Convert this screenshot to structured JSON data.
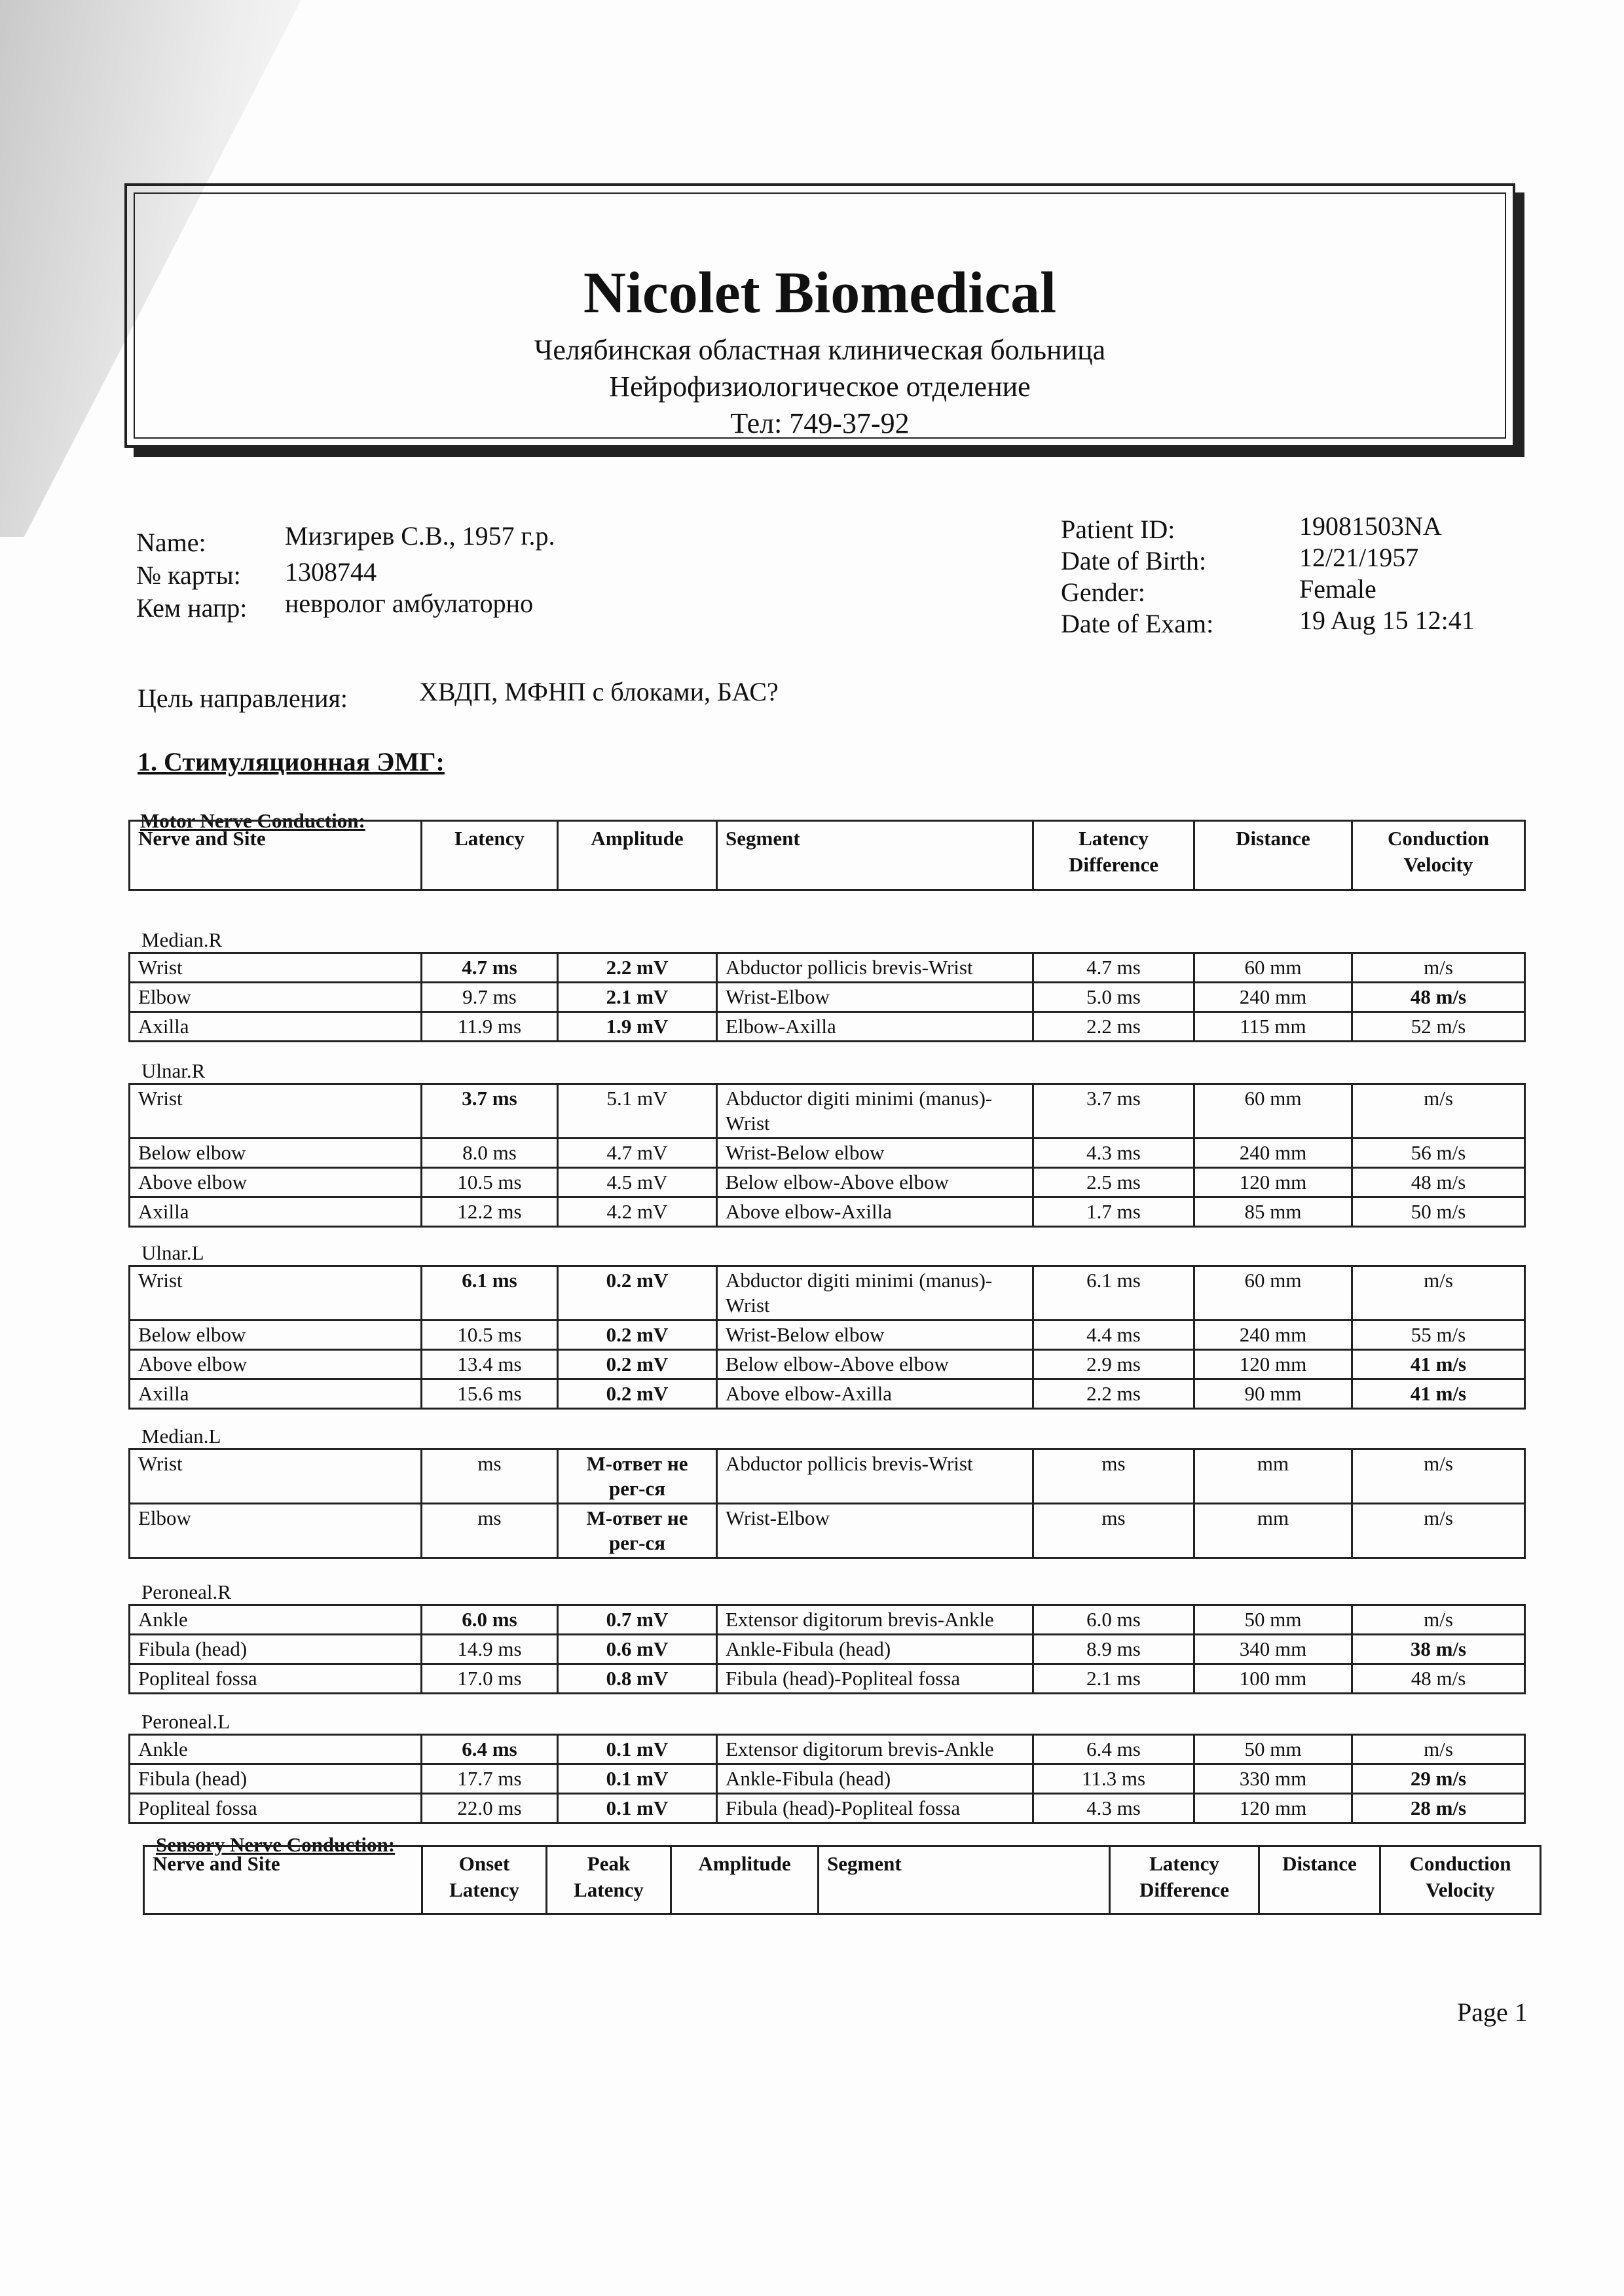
{
  "header": {
    "title": "Nicolet Biomedical",
    "line1": "Челябинская областная клиническая больница",
    "line2": "Нейрофизиологическое отделение",
    "line3": "Тел: 749-37-92"
  },
  "patient": {
    "name_label": "Name:",
    "name_value": "Мизгирев С.В.,  1957 г.р.",
    "card_label": "№ карты:",
    "card_value": "1308744",
    "ref_label": "Кем напр:",
    "ref_value": "невролог амбулаторно",
    "id_label": "Patient ID:",
    "id_value": "19081503NA",
    "dob_label": "Date of Birth:",
    "dob_value": "12/21/1957",
    "gender_label": "Gender:",
    "gender_value": "Female",
    "exam_label": "Date of Exam:",
    "exam_value": "19 Aug 15 12:41"
  },
  "purpose": {
    "label": "Цель направления:",
    "value": "ХВДП, МФНП с блоками, БАС?"
  },
  "section_title": "1. Стимуляционная ЭМГ:",
  "motor": {
    "title": "Motor Nerve Conduction:",
    "headers": [
      "Nerve and Site",
      "Latency",
      "Amplitude",
      "Segment",
      "Latency Difference",
      "Distance",
      "Conduction Velocity"
    ],
    "groups": [
      {
        "name": "Median.R",
        "rows": [
          {
            "cells": [
              "Wrist",
              "4.7 ms",
              "2.2 mV",
              "Abductor pollicis brevis-Wrist",
              "4.7 ms",
              "60 mm",
              "m/s"
            ],
            "bold": [
              1,
              2
            ]
          },
          {
            "cells": [
              "Elbow",
              "9.7 ms",
              "2.1 mV",
              "Wrist-Elbow",
              "5.0 ms",
              "240 mm",
              "48 m/s"
            ],
            "bold": [
              2,
              6
            ]
          },
          {
            "cells": [
              "Axilla",
              "11.9 ms",
              "1.9 mV",
              "Elbow-Axilla",
              "2.2 ms",
              "115 mm",
              "52 m/s"
            ],
            "bold": [
              2
            ]
          }
        ]
      },
      {
        "name": "Ulnar.R",
        "rows": [
          {
            "cells": [
              "Wrist",
              "3.7 ms",
              "5.1 mV",
              "Abductor digiti minimi (manus)-Wrist",
              "3.7 ms",
              "60 mm",
              "m/s"
            ],
            "bold": [
              1
            ]
          },
          {
            "cells": [
              "Below elbow",
              "8.0 ms",
              "4.7 mV",
              "Wrist-Below elbow",
              "4.3 ms",
              "240 mm",
              "56 m/s"
            ],
            "bold": []
          },
          {
            "cells": [
              "Above elbow",
              "10.5 ms",
              "4.5 mV",
              "Below elbow-Above elbow",
              "2.5 ms",
              "120 mm",
              "48 m/s"
            ],
            "bold": []
          },
          {
            "cells": [
              "Axilla",
              "12.2 ms",
              "4.2 mV",
              "Above elbow-Axilla",
              "1.7 ms",
              "85 mm",
              "50 m/s"
            ],
            "bold": []
          }
        ]
      },
      {
        "name": "Ulnar.L",
        "rows": [
          {
            "cells": [
              "Wrist",
              "6.1 ms",
              "0.2 mV",
              "Abductor digiti minimi (manus)-Wrist",
              "6.1 ms",
              "60 mm",
              "m/s"
            ],
            "bold": [
              1,
              2
            ]
          },
          {
            "cells": [
              "Below elbow",
              "10.5 ms",
              "0.2 mV",
              "Wrist-Below elbow",
              "4.4 ms",
              "240 mm",
              "55 m/s"
            ],
            "bold": [
              2
            ]
          },
          {
            "cells": [
              "Above elbow",
              "13.4 ms",
              "0.2 mV",
              "Below elbow-Above elbow",
              "2.9 ms",
              "120 mm",
              "41 m/s"
            ],
            "bold": [
              2,
              6
            ]
          },
          {
            "cells": [
              "Axilla",
              "15.6 ms",
              "0.2 mV",
              "Above elbow-Axilla",
              "2.2 ms",
              "90 mm",
              "41 m/s"
            ],
            "bold": [
              2,
              6
            ]
          }
        ]
      },
      {
        "name": "Median.L",
        "rows": [
          {
            "cells": [
              "Wrist",
              "ms",
              "М-ответ не рег-ся",
              "Abductor pollicis brevis-Wrist",
              "ms",
              "mm",
              "m/s"
            ],
            "bold": [
              2
            ]
          },
          {
            "cells": [
              "Elbow",
              "ms",
              "М-ответ не рег-ся",
              "Wrist-Elbow",
              "ms",
              "mm",
              "m/s"
            ],
            "bold": [
              2
            ]
          }
        ]
      },
      {
        "name": "Peroneal.R",
        "rows": [
          {
            "cells": [
              "Ankle",
              "6.0 ms",
              "0.7 mV",
              "Extensor digitorum brevis-Ankle",
              "6.0 ms",
              "50 mm",
              "m/s"
            ],
            "bold": [
              1,
              2
            ]
          },
          {
            "cells": [
              "Fibula (head)",
              "14.9 ms",
              "0.6 mV",
              "Ankle-Fibula (head)",
              "8.9 ms",
              "340 mm",
              "38 m/s"
            ],
            "bold": [
              2,
              6
            ]
          },
          {
            "cells": [
              "Popliteal fossa",
              "17.0 ms",
              "0.8 mV",
              "Fibula (head)-Popliteal fossa",
              "2.1 ms",
              "100 mm",
              "48 m/s"
            ],
            "bold": [
              2
            ]
          }
        ]
      },
      {
        "name": "Peroneal.L",
        "rows": [
          {
            "cells": [
              "Ankle",
              "6.4 ms",
              "0.1 mV",
              "Extensor digitorum brevis-Ankle",
              "6.4 ms",
              "50 mm",
              "m/s"
            ],
            "bold": [
              1,
              2
            ]
          },
          {
            "cells": [
              "Fibula (head)",
              "17.7 ms",
              "0.1 mV",
              "Ankle-Fibula (head)",
              "11.3 ms",
              "330 mm",
              "29 m/s"
            ],
            "bold": [
              2,
              6
            ]
          },
          {
            "cells": [
              "Popliteal fossa",
              "22.0 ms",
              "0.1 mV",
              "Fibula (head)-Popliteal fossa",
              "4.3 ms",
              "120 mm",
              "28 m/s"
            ],
            "bold": [
              2,
              6
            ]
          }
        ]
      }
    ]
  },
  "sensory": {
    "title": "Sensory Nerve Conduction:",
    "headers": [
      "Nerve and Site",
      "Onset Latency",
      "Peak Latency",
      "Amplitude",
      "Segment",
      "Latency Difference",
      "Distance",
      "Conduction Velocity"
    ]
  },
  "footer": {
    "page": "Page 1"
  }
}
